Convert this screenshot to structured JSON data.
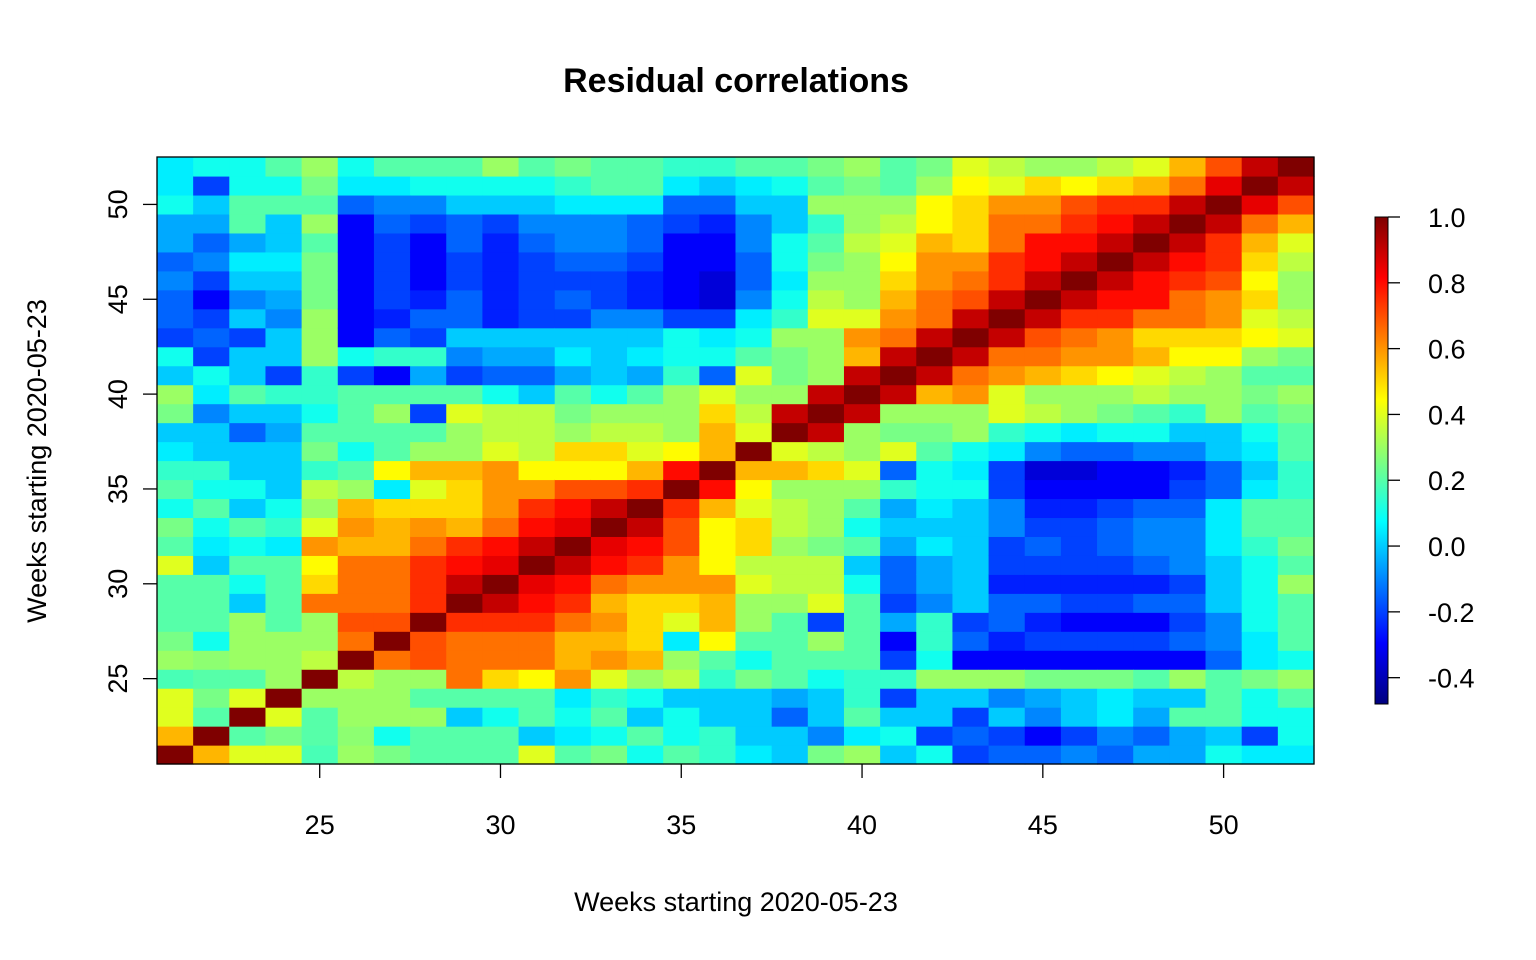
{
  "chart_data": {
    "type": "heatmap",
    "title": "Residual correlations",
    "xlabel": "Weeks starting 2020-05-23",
    "ylabel": "Weeks starting 2020-05-23",
    "x_range": [
      21,
      52
    ],
    "y_range": [
      21,
      52
    ],
    "xticks": [
      25,
      30,
      35,
      40,
      45,
      50
    ],
    "yticks": [
      25,
      30,
      35,
      40,
      45,
      50
    ],
    "colorbar": {
      "ticks": [
        "1.0",
        "0.8",
        "0.6",
        "0.4",
        "0.2",
        "0.0",
        "-0.2",
        "-0.4"
      ],
      "tick_values": [
        1.0,
        0.8,
        0.6,
        0.4,
        0.2,
        0.0,
        -0.2,
        -0.4
      ],
      "range": [
        -0.48,
        1.0
      ],
      "palette": [
        "#00007f",
        "#0000ff",
        "#007fff",
        "#00ffff",
        "#7fff7f",
        "#ffff00",
        "#ff7f00",
        "#ff0000",
        "#7f0000"
      ]
    },
    "grid": false,
    "note_matrix": "matrix[i][j] = correlation between week (21+i) and week (21+j); symmetric, diagonal = 1.0",
    "matrix": [
      [
        1.0,
        0.55,
        0.4,
        0.4,
        0.18,
        0.3,
        0.25,
        0.2,
        0.2,
        0.2,
        0.4,
        0.2,
        0.25,
        0.1,
        0.2,
        0.15,
        0.05,
        0.0,
        0.25,
        0.3,
        0.0,
        0.1,
        -0.2,
        -0.15,
        -0.15,
        -0.1,
        -0.15,
        -0.05,
        -0.05,
        0.1,
        0.05,
        0.05
      ],
      [
        0.55,
        1.0,
        0.2,
        0.25,
        0.2,
        0.28,
        0.1,
        0.2,
        0.2,
        0.2,
        0.0,
        0.05,
        0.1,
        0.2,
        0.1,
        0.15,
        0.0,
        0.0,
        -0.1,
        0.05,
        0.1,
        -0.2,
        -0.15,
        -0.2,
        -0.3,
        -0.2,
        -0.1,
        -0.15,
        -0.05,
        0.0,
        -0.2,
        0.1
      ],
      [
        0.4,
        0.2,
        1.0,
        0.4,
        0.2,
        0.3,
        0.3,
        0.3,
        0.0,
        0.1,
        0.2,
        0.1,
        0.2,
        0.0,
        0.1,
        0.0,
        0.0,
        -0.15,
        0.0,
        0.2,
        0.0,
        0.0,
        -0.2,
        0.0,
        -0.1,
        0.0,
        0.05,
        -0.05,
        0.2,
        0.2,
        0.1,
        0.1
      ],
      [
        0.4,
        0.25,
        0.4,
        1.0,
        0.3,
        0.3,
        0.3,
        0.2,
        0.2,
        0.2,
        0.2,
        0.05,
        0.15,
        0.1,
        0.0,
        0.0,
        0.0,
        -0.05,
        0.0,
        0.15,
        -0.2,
        0.0,
        0.0,
        -0.1,
        -0.05,
        0.0,
        0.05,
        0.0,
        0.0,
        0.2,
        0.1,
        0.2
      ],
      [
        0.18,
        0.2,
        0.2,
        0.3,
        1.0,
        0.35,
        0.3,
        0.3,
        0.65,
        0.5,
        0.45,
        0.6,
        0.4,
        0.3,
        0.35,
        0.15,
        0.25,
        0.2,
        0.1,
        0.15,
        0.15,
        0.3,
        0.3,
        0.3,
        0.25,
        0.25,
        0.25,
        0.2,
        0.3,
        0.2,
        0.25,
        0.3
      ],
      [
        0.3,
        0.28,
        0.3,
        0.3,
        0.35,
        1.0,
        0.65,
        0.7,
        0.65,
        0.65,
        0.65,
        0.55,
        0.6,
        0.55,
        0.3,
        0.2,
        0.1,
        0.2,
        0.2,
        0.2,
        -0.2,
        0.1,
        -0.3,
        -0.3,
        -0.3,
        -0.3,
        -0.3,
        -0.3,
        -0.3,
        -0.15,
        0.05,
        0.1
      ],
      [
        0.25,
        0.1,
        0.3,
        0.3,
        0.3,
        0.65,
        1.0,
        0.7,
        0.65,
        0.65,
        0.65,
        0.55,
        0.55,
        0.5,
        0.05,
        0.45,
        0.2,
        0.2,
        0.3,
        0.2,
        -0.3,
        0.15,
        -0.15,
        -0.25,
        -0.2,
        -0.2,
        -0.2,
        -0.2,
        -0.15,
        -0.1,
        0.05,
        0.2
      ],
      [
        0.2,
        0.2,
        0.3,
        0.2,
        0.3,
        0.7,
        0.7,
        1.0,
        0.75,
        0.75,
        0.75,
        0.65,
        0.6,
        0.5,
        0.4,
        0.55,
        0.3,
        0.2,
        -0.2,
        0.2,
        -0.05,
        0.15,
        -0.2,
        -0.15,
        -0.25,
        -0.3,
        -0.3,
        -0.3,
        -0.2,
        -0.1,
        0.1,
        0.2
      ],
      [
        0.2,
        0.2,
        0.0,
        0.2,
        0.65,
        0.65,
        0.65,
        0.75,
        1.0,
        0.9,
        0.8,
        0.75,
        0.55,
        0.5,
        0.5,
        0.55,
        0.3,
        0.3,
        0.4,
        0.2,
        -0.2,
        -0.1,
        0.0,
        -0.15,
        -0.15,
        -0.2,
        -0.2,
        -0.15,
        -0.15,
        0.0,
        0.1,
        0.2
      ],
      [
        0.2,
        0.2,
        0.1,
        0.2,
        0.5,
        0.65,
        0.65,
        0.75,
        0.9,
        1.0,
        0.85,
        0.8,
        0.65,
        0.6,
        0.6,
        0.6,
        0.4,
        0.35,
        0.35,
        0.1,
        -0.15,
        -0.05,
        0.0,
        -0.25,
        -0.25,
        -0.25,
        -0.25,
        -0.25,
        -0.2,
        0.0,
        0.1,
        0.3
      ],
      [
        0.4,
        0.0,
        0.2,
        0.2,
        0.45,
        0.65,
        0.65,
        0.75,
        0.8,
        0.85,
        1.0,
        0.9,
        0.8,
        0.75,
        0.6,
        0.45,
        0.35,
        0.35,
        0.35,
        0.0,
        -0.15,
        -0.05,
        0.0,
        -0.2,
        -0.2,
        -0.2,
        -0.2,
        -0.15,
        -0.1,
        0.0,
        0.1,
        0.2
      ],
      [
        0.2,
        0.05,
        0.1,
        0.05,
        0.6,
        0.55,
        0.55,
        0.65,
        0.75,
        0.8,
        0.9,
        1.0,
        0.85,
        0.8,
        0.7,
        0.45,
        0.5,
        0.3,
        0.25,
        0.2,
        -0.05,
        0.05,
        0.0,
        -0.2,
        -0.15,
        -0.2,
        -0.15,
        -0.1,
        -0.1,
        0.05,
        0.15,
        0.25
      ],
      [
        0.25,
        0.1,
        0.2,
        0.15,
        0.4,
        0.6,
        0.55,
        0.6,
        0.55,
        0.65,
        0.8,
        0.85,
        1.0,
        0.9,
        0.7,
        0.45,
        0.5,
        0.35,
        0.3,
        0.1,
        0.0,
        0.0,
        0.0,
        -0.1,
        -0.2,
        -0.2,
        -0.15,
        -0.1,
        -0.1,
        0.05,
        0.2,
        0.2
      ],
      [
        0.1,
        0.2,
        0.0,
        0.1,
        0.3,
        0.55,
        0.5,
        0.5,
        0.5,
        0.6,
        0.75,
        0.8,
        0.9,
        1.0,
        0.75,
        0.55,
        0.4,
        0.35,
        0.3,
        0.2,
        -0.05,
        0.05,
        0.0,
        -0.1,
        -0.25,
        -0.25,
        -0.2,
        -0.15,
        -0.15,
        0.05,
        0.2,
        0.2
      ],
      [
        0.2,
        0.1,
        0.1,
        0.0,
        0.35,
        0.3,
        0.05,
        0.4,
        0.5,
        0.6,
        0.6,
        0.7,
        0.7,
        0.75,
        1.0,
        0.8,
        0.45,
        0.3,
        0.3,
        0.3,
        0.15,
        0.1,
        0.1,
        -0.2,
        -0.3,
        -0.3,
        -0.3,
        -0.3,
        -0.2,
        -0.15,
        0.05,
        0.15
      ],
      [
        0.15,
        0.15,
        0.0,
        0.0,
        0.15,
        0.2,
        0.45,
        0.55,
        0.55,
        0.6,
        0.45,
        0.45,
        0.45,
        0.55,
        0.8,
        1.0,
        0.55,
        0.55,
        0.5,
        0.4,
        -0.15,
        0.1,
        0.05,
        -0.2,
        -0.35,
        -0.35,
        -0.3,
        -0.3,
        -0.25,
        -0.15,
        0.0,
        0.15
      ],
      [
        0.05,
        0.0,
        0.0,
        0.0,
        0.25,
        0.1,
        0.2,
        0.3,
        0.3,
        0.4,
        0.35,
        0.5,
        0.5,
        0.4,
        0.45,
        0.55,
        1.0,
        0.4,
        0.35,
        0.3,
        0.4,
        0.2,
        0.1,
        0.05,
        -0.1,
        -0.15,
        -0.15,
        -0.1,
        -0.1,
        0.0,
        0.05,
        0.2
      ],
      [
        0.0,
        0.0,
        -0.15,
        -0.05,
        0.2,
        0.2,
        0.2,
        0.2,
        0.3,
        0.35,
        0.35,
        0.3,
        0.35,
        0.35,
        0.3,
        0.55,
        0.4,
        1.0,
        0.9,
        0.3,
        0.25,
        0.25,
        0.3,
        0.15,
        0.1,
        0.05,
        0.1,
        0.1,
        0.0,
        0.0,
        0.1,
        0.2
      ],
      [
        0.25,
        -0.1,
        0.0,
        0.0,
        0.1,
        0.2,
        0.3,
        -0.2,
        0.4,
        0.35,
        0.35,
        0.25,
        0.3,
        0.3,
        0.3,
        0.5,
        0.35,
        0.9,
        1.0,
        0.9,
        0.3,
        0.3,
        0.3,
        0.4,
        0.35,
        0.3,
        0.25,
        0.2,
        0.15,
        0.3,
        0.2,
        0.25
      ],
      [
        0.3,
        0.05,
        0.2,
        0.15,
        0.15,
        0.2,
        0.2,
        0.2,
        0.2,
        0.1,
        0.0,
        0.2,
        0.1,
        0.2,
        0.3,
        0.4,
        0.3,
        0.3,
        0.9,
        1.0,
        0.9,
        0.55,
        0.6,
        0.4,
        0.3,
        0.3,
        0.3,
        0.35,
        0.3,
        0.3,
        0.25,
        0.3
      ],
      [
        0.0,
        0.1,
        0.0,
        -0.2,
        0.15,
        -0.2,
        -0.3,
        -0.05,
        -0.2,
        -0.15,
        -0.15,
        -0.05,
        0.0,
        -0.05,
        0.15,
        -0.15,
        0.4,
        0.25,
        0.3,
        0.9,
        1.0,
        0.9,
        0.65,
        0.6,
        0.55,
        0.5,
        0.45,
        0.4,
        0.35,
        0.3,
        0.2,
        0.2
      ],
      [
        0.1,
        -0.2,
        0.0,
        0.0,
        0.3,
        0.1,
        0.15,
        0.15,
        -0.1,
        -0.05,
        -0.05,
        0.05,
        0.0,
        0.05,
        0.1,
        0.1,
        0.2,
        0.25,
        0.3,
        0.55,
        0.9,
        1.0,
        0.9,
        0.65,
        0.65,
        0.6,
        0.6,
        0.55,
        0.45,
        0.45,
        0.3,
        0.25
      ],
      [
        -0.2,
        -0.15,
        -0.2,
        0.0,
        0.3,
        -0.3,
        -0.15,
        -0.2,
        0.0,
        0.0,
        0.0,
        0.0,
        0.0,
        0.0,
        0.1,
        0.05,
        0.1,
        0.3,
        0.3,
        0.6,
        0.65,
        0.9,
        1.0,
        0.9,
        0.7,
        0.65,
        0.6,
        0.5,
        0.5,
        0.5,
        0.45,
        0.4
      ],
      [
        -0.15,
        -0.2,
        0.0,
        -0.1,
        0.3,
        -0.3,
        -0.25,
        -0.15,
        -0.15,
        -0.25,
        -0.2,
        -0.2,
        -0.1,
        -0.1,
        -0.2,
        -0.2,
        0.05,
        0.15,
        0.4,
        0.4,
        0.6,
        0.65,
        0.9,
        1.0,
        0.9,
        0.75,
        0.75,
        0.65,
        0.65,
        0.6,
        0.4,
        0.35
      ],
      [
        -0.15,
        -0.3,
        -0.1,
        -0.05,
        0.25,
        -0.3,
        -0.2,
        -0.25,
        -0.15,
        -0.25,
        -0.2,
        -0.15,
        -0.2,
        -0.25,
        -0.3,
        -0.35,
        -0.1,
        0.1,
        0.35,
        0.3,
        0.55,
        0.65,
        0.7,
        0.9,
        1.0,
        0.9,
        0.8,
        0.8,
        0.65,
        0.6,
        0.5,
        0.3
      ],
      [
        -0.1,
        -0.2,
        0.0,
        0.0,
        0.25,
        -0.3,
        -0.2,
        -0.3,
        -0.2,
        -0.25,
        -0.2,
        -0.2,
        -0.2,
        -0.25,
        -0.3,
        -0.35,
        -0.15,
        0.05,
        0.3,
        0.3,
        0.5,
        0.6,
        0.65,
        0.75,
        0.9,
        1.0,
        0.9,
        0.8,
        0.75,
        0.7,
        0.45,
        0.3
      ],
      [
        -0.15,
        -0.1,
        0.05,
        0.05,
        0.25,
        -0.3,
        -0.2,
        -0.3,
        -0.2,
        -0.25,
        -0.2,
        -0.15,
        -0.15,
        -0.2,
        -0.3,
        -0.3,
        -0.15,
        0.1,
        0.25,
        0.3,
        0.45,
        0.6,
        0.6,
        0.75,
        0.8,
        0.9,
        1.0,
        0.9,
        0.8,
        0.75,
        0.5,
        0.35
      ],
      [
        -0.05,
        -0.15,
        -0.05,
        0.0,
        0.2,
        -0.3,
        -0.2,
        -0.3,
        -0.15,
        -0.25,
        -0.15,
        -0.1,
        -0.1,
        -0.15,
        -0.3,
        -0.3,
        -0.1,
        0.1,
        0.2,
        0.35,
        0.4,
        0.55,
        0.5,
        0.65,
        0.8,
        0.8,
        0.9,
        1.0,
        0.9,
        0.75,
        0.55,
        0.4
      ],
      [
        -0.05,
        -0.05,
        0.2,
        0.0,
        0.3,
        -0.3,
        -0.15,
        -0.2,
        -0.15,
        -0.2,
        -0.1,
        -0.1,
        -0.1,
        -0.15,
        -0.2,
        -0.25,
        -0.1,
        0.0,
        0.15,
        0.3,
        0.35,
        0.45,
        0.5,
        0.65,
        0.65,
        0.75,
        0.8,
        0.9,
        1.0,
        0.9,
        0.65,
        0.55
      ],
      [
        0.1,
        0.0,
        0.2,
        0.2,
        0.2,
        -0.15,
        -0.1,
        -0.1,
        0.0,
        0.0,
        0.0,
        0.05,
        0.05,
        0.05,
        -0.15,
        -0.15,
        0.0,
        0.0,
        0.3,
        0.3,
        0.3,
        0.45,
        0.5,
        0.6,
        0.6,
        0.7,
        0.75,
        0.75,
        0.9,
        1.0,
        0.85,
        0.7
      ],
      [
        0.05,
        -0.2,
        0.1,
        0.1,
        0.25,
        0.05,
        0.05,
        0.1,
        0.1,
        0.1,
        0.1,
        0.15,
        0.2,
        0.2,
        0.05,
        0.0,
        0.05,
        0.1,
        0.2,
        0.25,
        0.2,
        0.3,
        0.45,
        0.4,
        0.5,
        0.45,
        0.5,
        0.55,
        0.65,
        0.85,
        1.0,
        0.9
      ],
      [
        0.05,
        0.1,
        0.1,
        0.2,
        0.3,
        0.1,
        0.2,
        0.2,
        0.2,
        0.3,
        0.2,
        0.25,
        0.2,
        0.2,
        0.15,
        0.15,
        0.2,
        0.2,
        0.25,
        0.3,
        0.2,
        0.25,
        0.4,
        0.35,
        0.3,
        0.3,
        0.35,
        0.4,
        0.55,
        0.7,
        0.9,
        1.0
      ]
    ]
  }
}
